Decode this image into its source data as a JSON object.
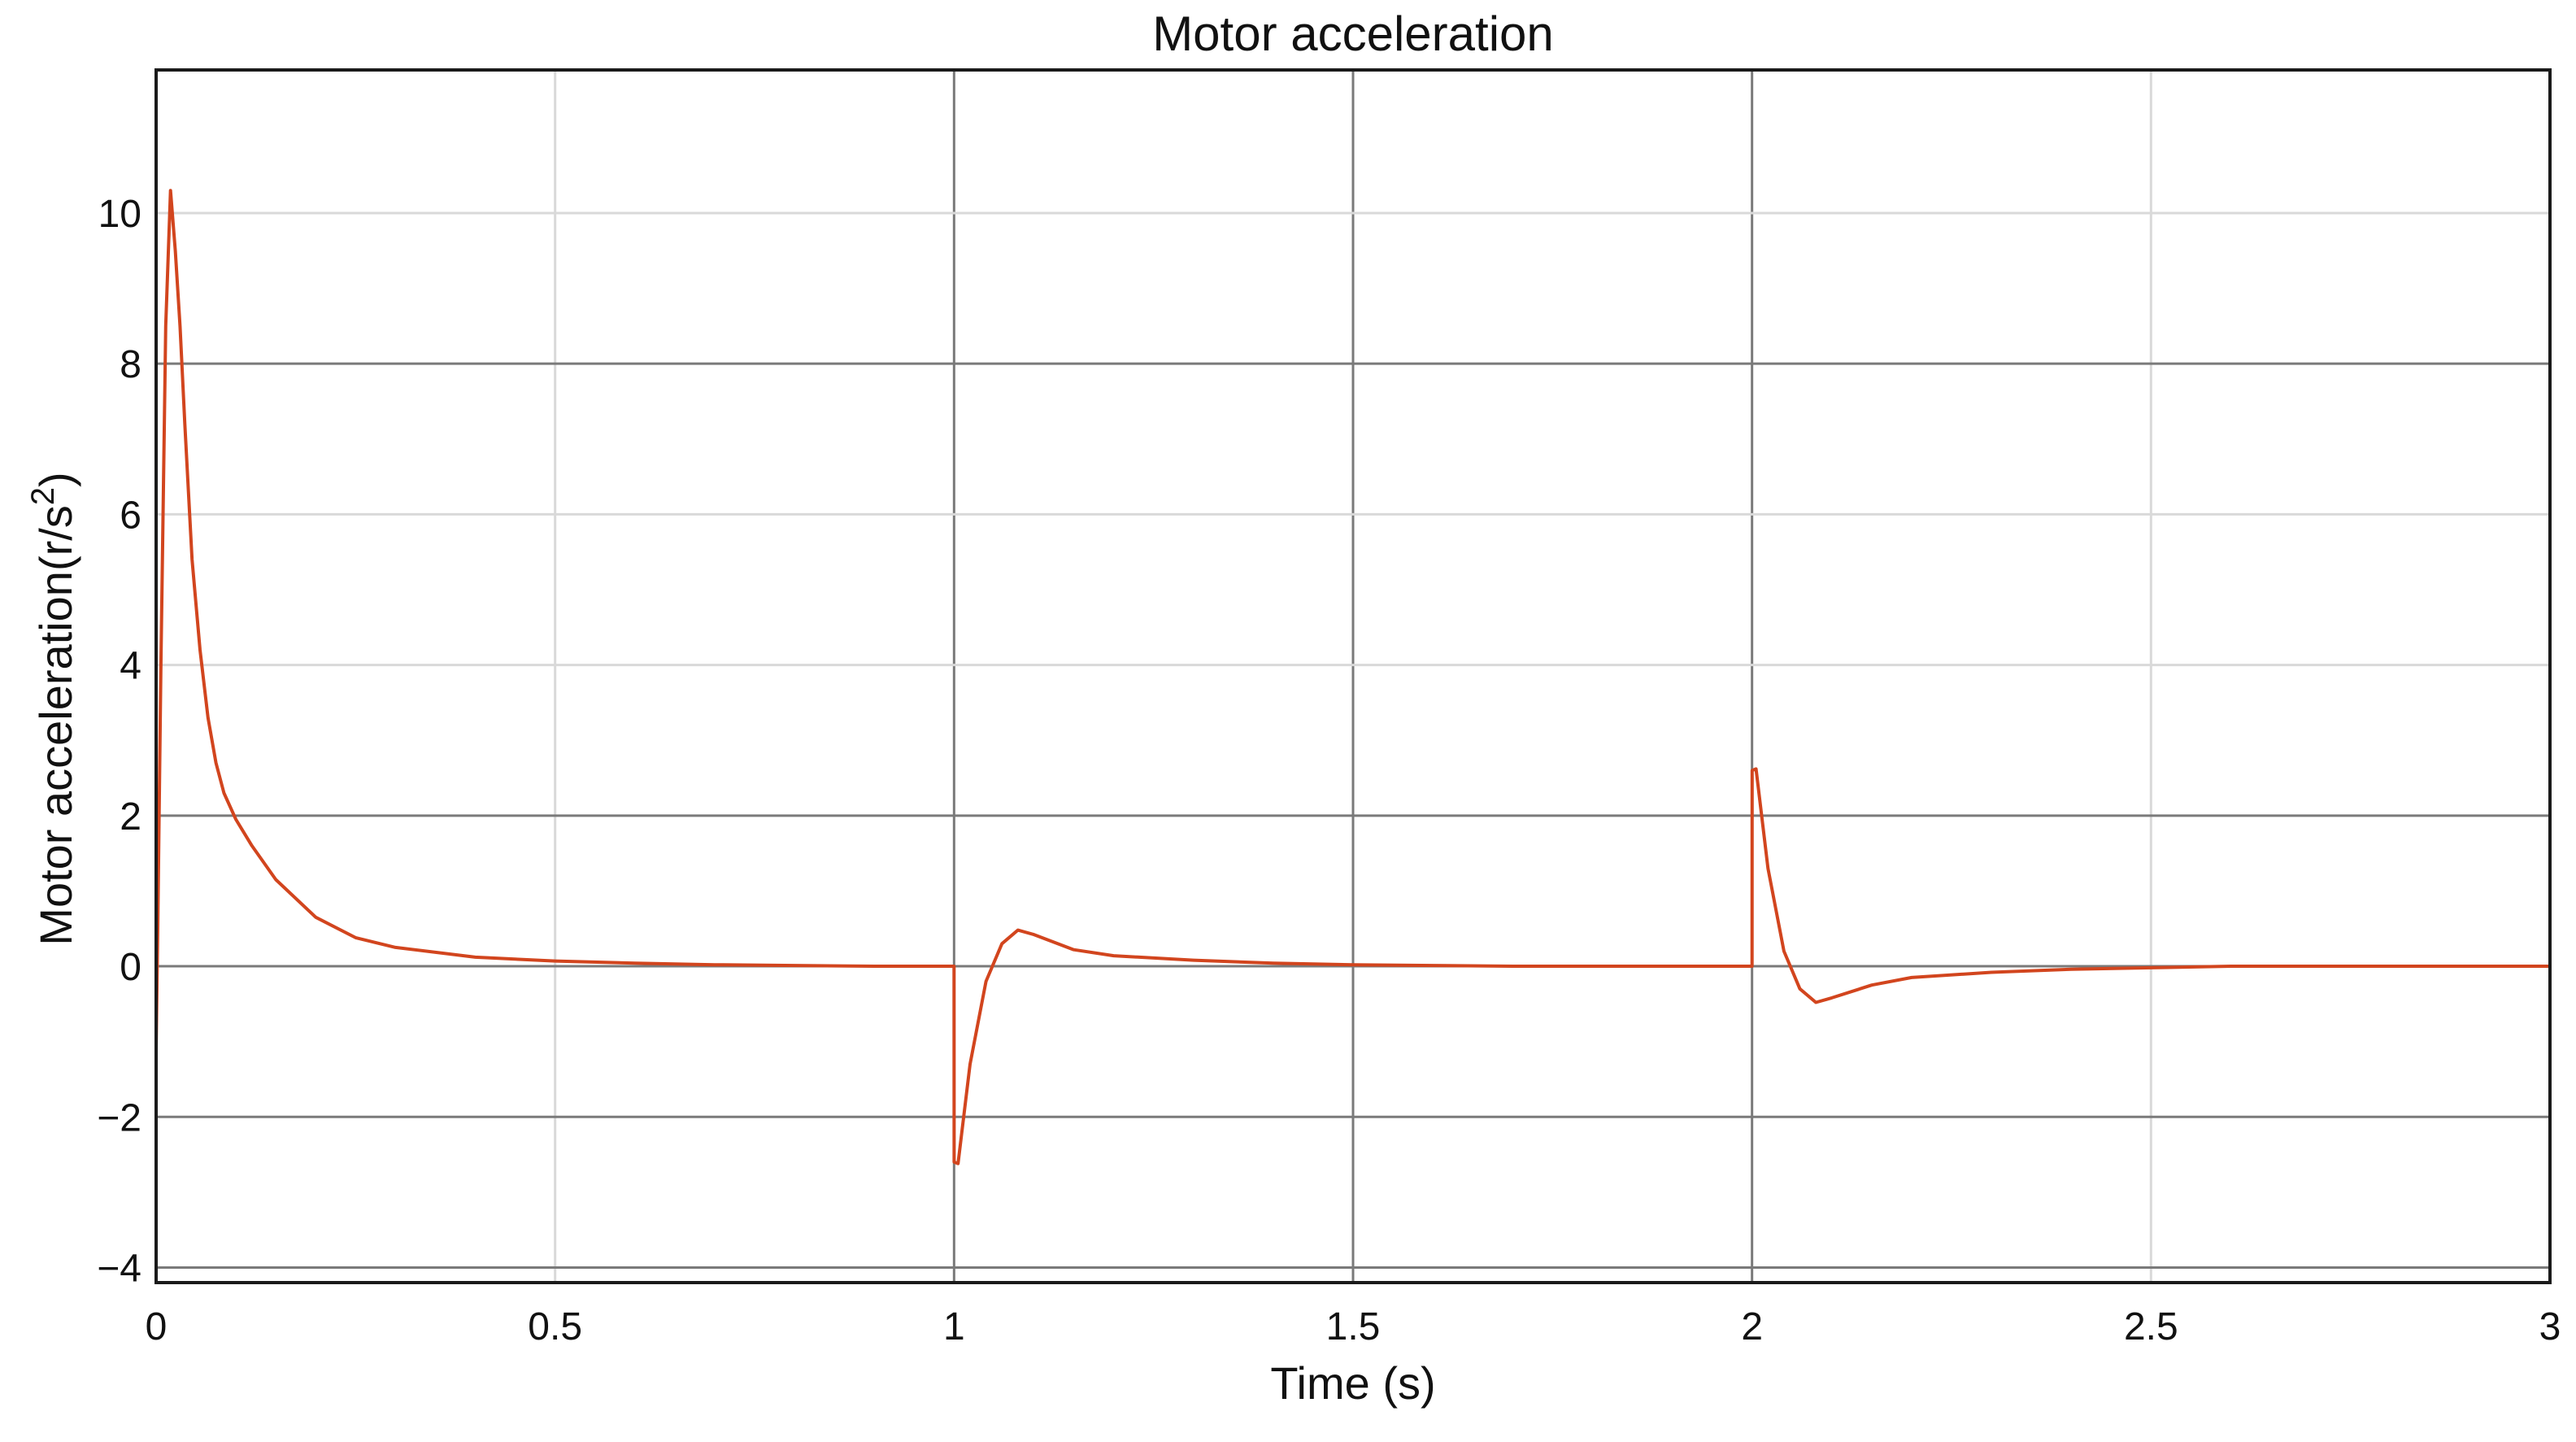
{
  "chart_data": {
    "type": "line",
    "title": "Motor acceleration",
    "xlabel": "Time (s)",
    "ylabel_main": "Motor acceleration(r/s",
    "ylabel_sup": "2",
    "ylabel_tail": ")",
    "xlim": [
      0,
      3
    ],
    "ylim": [
      -4.2,
      11.9
    ],
    "x_ticks": [
      0,
      0.5,
      1,
      1.5,
      2,
      2.5,
      3
    ],
    "x_tick_labels": [
      "0",
      "0.5",
      "1",
      "1.5",
      "2",
      "2.5",
      "3"
    ],
    "y_ticks": [
      -4,
      -2,
      0,
      2,
      4,
      6,
      8,
      10
    ],
    "y_tick_labels": [
      "−4",
      "−2",
      "0",
      "2",
      "4",
      "6",
      "8",
      "10"
    ],
    "grid": true,
    "major_grid_x": [
      1,
      1.5,
      2
    ],
    "major_grid_y": [
      -4,
      -2,
      0,
      2,
      8
    ],
    "line_color": "#d2451e",
    "series": [
      {
        "x": [
          0,
          0.002,
          0.006,
          0.012,
          0.018,
          0.024,
          0.03,
          0.036,
          0.045,
          0.055,
          0.065,
          0.075,
          0.085,
          0.1,
          0.12,
          0.15,
          0.2,
          0.25,
          0.3,
          0.4,
          0.5,
          0.6,
          0.7,
          0.8,
          0.9,
          1.0,
          1.0001,
          1.005,
          1.02,
          1.04,
          1.06,
          1.08,
          1.1,
          1.15,
          1.2,
          1.3,
          1.4,
          1.5,
          1.6,
          1.7,
          1.8,
          1.9,
          2.0,
          2.0001,
          2.005,
          2.02,
          2.04,
          2.06,
          2.08,
          2.1,
          2.15,
          2.2,
          2.3,
          2.4,
          2.5,
          2.6,
          2.8,
          3.0
        ],
        "y": [
          -1.1,
          0.5,
          4.0,
          8.5,
          10.3,
          9.5,
          8.5,
          7.2,
          5.4,
          4.2,
          3.3,
          2.7,
          2.3,
          1.95,
          1.6,
          1.15,
          0.65,
          0.38,
          0.25,
          0.12,
          0.07,
          0.04,
          0.02,
          0.01,
          0.0,
          0.0,
          -2.6,
          -2.62,
          -1.3,
          -0.2,
          0.3,
          0.48,
          0.42,
          0.22,
          0.14,
          0.08,
          0.04,
          0.02,
          0.01,
          0.0,
          0.0,
          0.0,
          0.0,
          2.6,
          2.62,
          1.3,
          0.2,
          -0.3,
          -0.48,
          -0.42,
          -0.25,
          -0.15,
          -0.08,
          -0.04,
          -0.02,
          0.0,
          0.0,
          0.0
        ]
      }
    ]
  }
}
